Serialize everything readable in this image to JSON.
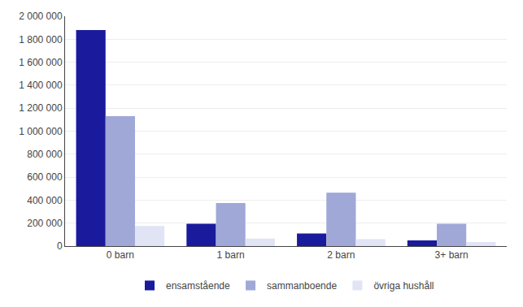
{
  "chart_data": {
    "type": "bar",
    "categories": [
      "0 barn",
      "1 barn",
      "2 barn",
      "3+ barn"
    ],
    "series": [
      {
        "name": "ensamstående",
        "color": "#1a1a9c",
        "values": [
          1880000,
          195000,
          110000,
          50000
        ]
      },
      {
        "name": "sammanboende",
        "color": "#a0a8d8",
        "values": [
          1130000,
          375000,
          465000,
          195000
        ]
      },
      {
        "name": "övriga hushåll",
        "color": "#e0e4f4",
        "values": [
          175000,
          65000,
          60000,
          35000
        ]
      }
    ],
    "ylim": [
      0,
      2000000
    ],
    "yticks": [
      0,
      {
        "value": 200000,
        "label": "200 000"
      },
      {
        "value": 400000,
        "label": "400 000"
      },
      {
        "value": 600000,
        "label": "600 000"
      },
      {
        "value": 800000,
        "label": "800 000"
      },
      {
        "value": 1000000,
        "label": "1 000 000"
      },
      {
        "value": 1200000,
        "label": "1 200 000"
      },
      {
        "value": 1400000,
        "label": "1 400 000"
      },
      {
        "value": 1600000,
        "label": "1 600 000"
      },
      {
        "value": 1800000,
        "label": "1 800 000"
      },
      {
        "value": 2000000,
        "label": "2 000 000"
      }
    ],
    "grid": true,
    "legend": "bottom"
  }
}
